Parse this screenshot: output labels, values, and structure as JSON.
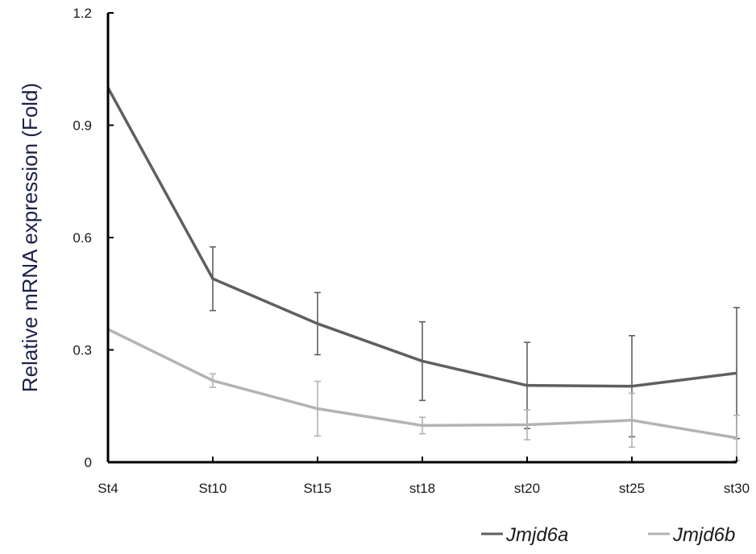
{
  "chart_data": {
    "type": "line",
    "title": "",
    "xlabel": "",
    "ylabel": "Relative mRNA expression (Fold)",
    "categories": [
      "St4",
      "St10",
      "St15",
      "st18",
      "st20",
      "st25",
      "st30"
    ],
    "y_ticks": [
      "0",
      "0.3",
      "0.6",
      "0.9",
      "1.2"
    ],
    "ylim": [
      0,
      1.2
    ],
    "grid": false,
    "legend_position": "bottom-right",
    "series": [
      {
        "name": "Jmjd6a",
        "color": "#5f5f5f",
        "values": [
          1.0,
          0.49,
          0.37,
          0.27,
          0.205,
          0.203,
          0.238
        ],
        "errors": [
          0.0,
          0.085,
          0.083,
          0.105,
          0.115,
          0.135,
          0.175
        ]
      },
      {
        "name": "Jmjd6b",
        "color": "#b3b3b3",
        "values": [
          0.355,
          0.218,
          0.143,
          0.098,
          0.1,
          0.112,
          0.065
        ],
        "errors": [
          0.0,
          0.018,
          0.073,
          0.022,
          0.04,
          0.072,
          0.06
        ]
      }
    ]
  }
}
